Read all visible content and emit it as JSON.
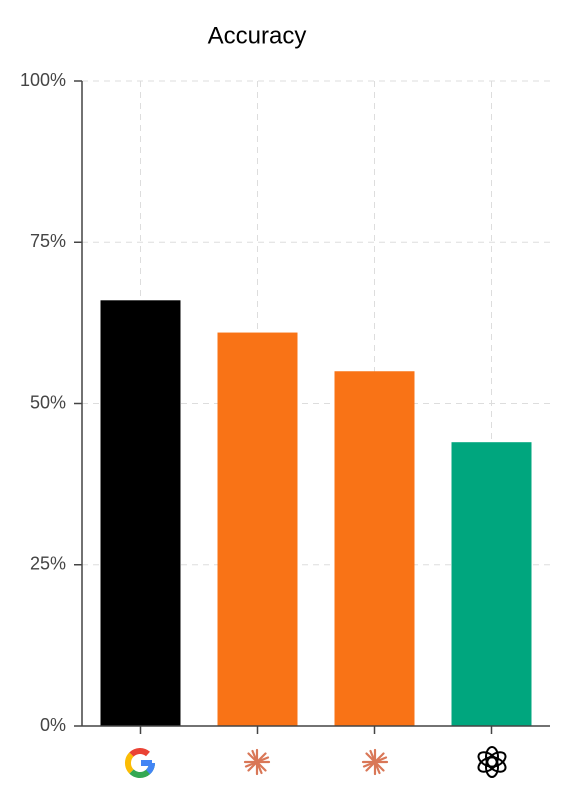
{
  "chart_data": {
    "type": "bar",
    "title": "Accuracy",
    "categories": [
      null,
      null,
      null,
      null
    ],
    "values": [
      66,
      61,
      55,
      44
    ],
    "colors": [
      "#000000",
      "#f97316",
      "#f97316",
      "#00a67e"
    ],
    "ylim": [
      0,
      100
    ],
    "yticks": [
      {
        "value": 0,
        "label": "0%"
      },
      {
        "value": 25,
        "label": "25%"
      },
      {
        "value": 50,
        "label": "50%"
      },
      {
        "value": 75,
        "label": "75%"
      },
      {
        "value": 100,
        "label": "100%"
      }
    ],
    "grid": true
  }
}
